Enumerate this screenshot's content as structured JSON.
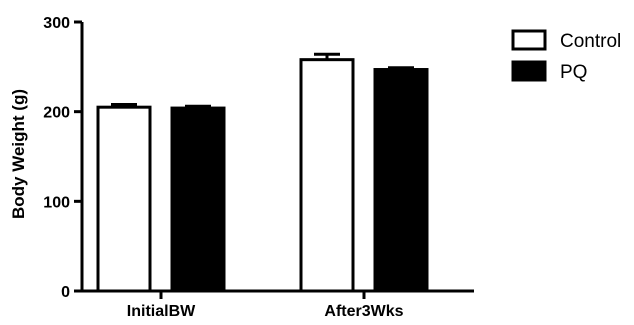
{
  "chart_data": {
    "type": "bar",
    "title": "",
    "ylabel": "Body Weight (g)",
    "xlabel": "",
    "categories": [
      "InitialBW",
      "After3Wks"
    ],
    "ylim": [
      0,
      300
    ],
    "yticks": [
      0,
      100,
      200,
      300
    ],
    "legend_position": "top-right",
    "series": [
      {
        "name": "Control",
        "values": [
          205,
          258
        ],
        "errors": [
          3,
          6
        ],
        "fill": "#ffffff",
        "stroke": "#000000"
      },
      {
        "name": "PQ",
        "values": [
          204,
          247
        ],
        "errors": [
          2,
          2
        ],
        "fill": "#000000",
        "stroke": "#000000"
      }
    ],
    "grid": false
  }
}
